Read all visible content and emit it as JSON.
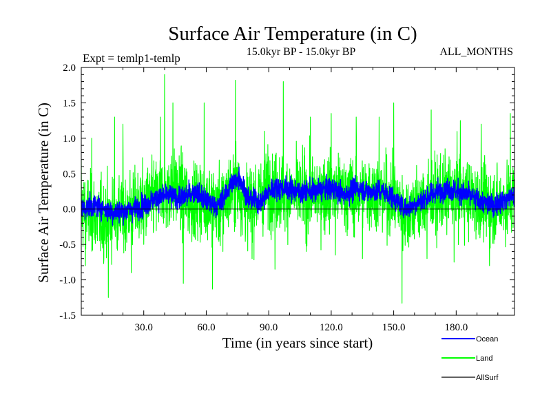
{
  "chart_data": {
    "type": "line",
    "title": "Surface Air Temperature (in C)",
    "subtitle": "15.0kyr BP - 15.0kyr BP",
    "experiment_label": "Expt = temlp1-temlp",
    "months_label": "ALL_MONTHS",
    "xlabel": "Time (in years since start)",
    "ylabel": "Surface Air Temperature (in C)",
    "xlim": [
      0,
      208
    ],
    "ylim": [
      -1.5,
      2.0
    ],
    "x_ticks": [
      30,
      60,
      90,
      120,
      150,
      180
    ],
    "x_tick_labels": [
      "30.0",
      "60.0",
      "90.0",
      "120.0",
      "150.0",
      "180.0"
    ],
    "y_ticks": [
      -1.5,
      -1.0,
      -0.5,
      0.0,
      0.5,
      1.0,
      1.5,
      2.0
    ],
    "y_tick_labels": [
      "-1.5",
      "-1.0",
      "-0.5",
      "0.0",
      "0.5",
      "1.0",
      "1.5",
      "2.0"
    ],
    "legend_position": "bottom-right",
    "series": [
      {
        "name": "Land",
        "color": "#00ff00",
        "amplitude": 0.45,
        "smooth_anchors": [
          [
            0,
            0.0
          ],
          [
            10,
            -0.15
          ],
          [
            20,
            -0.05
          ],
          [
            30,
            0.05
          ],
          [
            38,
            0.2
          ],
          [
            45,
            0.3
          ],
          [
            52,
            0.1
          ],
          [
            60,
            0.15
          ],
          [
            66,
            0.0
          ],
          [
            74,
            0.35
          ],
          [
            80,
            0.05
          ],
          [
            90,
            0.3
          ],
          [
            100,
            0.2
          ],
          [
            110,
            0.2
          ],
          [
            120,
            0.25
          ],
          [
            130,
            0.2
          ],
          [
            140,
            0.25
          ],
          [
            150,
            0.15
          ],
          [
            155,
            -0.05
          ],
          [
            162,
            0.05
          ],
          [
            170,
            0.15
          ],
          [
            180,
            0.25
          ],
          [
            190,
            0.1
          ],
          [
            200,
            0.05
          ],
          [
            208,
            0.2
          ]
        ],
        "peaks": [
          [
            0,
            0.7
          ],
          [
            5,
            1.0
          ],
          [
            16,
            1.3
          ],
          [
            20,
            1.2
          ],
          [
            38,
            1.3
          ],
          [
            40,
            1.9
          ],
          [
            44,
            1.5
          ],
          [
            59,
            1.5
          ],
          [
            74,
            1.82
          ],
          [
            88,
            1.1
          ],
          [
            97,
            1.8
          ],
          [
            110,
            1.3
          ],
          [
            120,
            1.35
          ],
          [
            132,
            1.3
          ],
          [
            143,
            1.3
          ],
          [
            150,
            1.5
          ],
          [
            168,
            1.4
          ],
          [
            182,
            1.25
          ],
          [
            192,
            1.2
          ],
          [
            206,
            1.35
          ]
        ],
        "troughs": [
          [
            2,
            -0.8
          ],
          [
            13,
            -1.25
          ],
          [
            24,
            -0.9
          ],
          [
            30,
            -0.5
          ],
          [
            49,
            -1.05
          ],
          [
            63,
            -1.13
          ],
          [
            68,
            -0.6
          ],
          [
            82,
            -0.7
          ],
          [
            93,
            -0.85
          ],
          [
            108,
            -0.6
          ],
          [
            122,
            -0.65
          ],
          [
            135,
            -0.7
          ],
          [
            154,
            -1.33
          ],
          [
            166,
            -0.7
          ],
          [
            179,
            -0.75
          ],
          [
            196,
            -0.8
          ]
        ]
      },
      {
        "name": "Ocean",
        "color": "#0000ff",
        "amplitude": 0.13,
        "smooth_anchors": [
          [
            0,
            0.0
          ],
          [
            8,
            0.05
          ],
          [
            15,
            -0.05
          ],
          [
            22,
            -0.02
          ],
          [
            30,
            0.05
          ],
          [
            36,
            0.15
          ],
          [
            42,
            0.2
          ],
          [
            48,
            0.15
          ],
          [
            55,
            0.25
          ],
          [
            60,
            0.1
          ],
          [
            66,
            0.05
          ],
          [
            72,
            0.35
          ],
          [
            76,
            0.45
          ],
          [
            80,
            0.15
          ],
          [
            86,
            0.1
          ],
          [
            92,
            0.3
          ],
          [
            98,
            0.3
          ],
          [
            105,
            0.25
          ],
          [
            112,
            0.25
          ],
          [
            120,
            0.3
          ],
          [
            126,
            0.2
          ],
          [
            132,
            0.3
          ],
          [
            138,
            0.25
          ],
          [
            145,
            0.25
          ],
          [
            150,
            0.15
          ],
          [
            156,
            0.0
          ],
          [
            162,
            0.1
          ],
          [
            168,
            0.2
          ],
          [
            175,
            0.3
          ],
          [
            180,
            0.25
          ],
          [
            186,
            0.2
          ],
          [
            192,
            0.1
          ],
          [
            198,
            0.05
          ],
          [
            204,
            0.15
          ],
          [
            208,
            0.2
          ]
        ]
      }
    ],
    "zero_line": 0.0,
    "legend": [
      {
        "label": "Ocean",
        "color": "#0000ff"
      },
      {
        "label": "Land",
        "color": "#00ff00"
      },
      {
        "label": "AllSurf",
        "color": "#000000"
      }
    ]
  }
}
